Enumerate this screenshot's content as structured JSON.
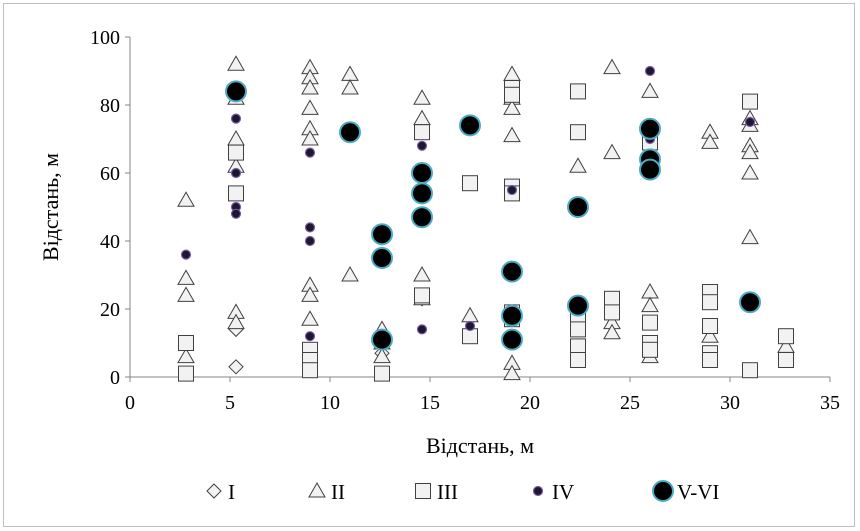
{
  "chart_data": {
    "type": "scatter",
    "xlabel": "Відстань, м",
    "ylabel": "Відстань, м",
    "xlim": [
      0,
      35
    ],
    "ylim": [
      0,
      100
    ],
    "xticks": [
      "0",
      "5",
      "10",
      "15",
      "20",
      "25",
      "30",
      "35"
    ],
    "yticks": [
      "0",
      "20",
      "40",
      "60",
      "80",
      "100"
    ],
    "grid": false,
    "legend_position": "bottom",
    "series": [
      {
        "name": "I",
        "marker": "diamond",
        "color": "#f2f2f2",
        "stroke": "#404040",
        "points": [
          [
            5.3,
            3
          ],
          [
            5.3,
            14
          ],
          [
            12.6,
            7
          ],
          [
            14.6,
            23
          ]
        ]
      },
      {
        "name": "II",
        "marker": "triangle",
        "color": "#f2f2f2",
        "stroke": "#404040",
        "points": [
          [
            2.8,
            52
          ],
          [
            2.8,
            29
          ],
          [
            2.8,
            24
          ],
          [
            2.8,
            6
          ],
          [
            5.3,
            92
          ],
          [
            5.3,
            82
          ],
          [
            5.3,
            70
          ],
          [
            5.3,
            62
          ],
          [
            5.3,
            19
          ],
          [
            5.3,
            16
          ],
          [
            9.0,
            91
          ],
          [
            9.0,
            88
          ],
          [
            9.0,
            85
          ],
          [
            9.0,
            79
          ],
          [
            9.0,
            73
          ],
          [
            9.0,
            70
          ],
          [
            9.0,
            27
          ],
          [
            9.0,
            24
          ],
          [
            9.0,
            17
          ],
          [
            11.0,
            89
          ],
          [
            11.0,
            85
          ],
          [
            11.0,
            30
          ],
          [
            12.6,
            14
          ],
          [
            12.6,
            10
          ],
          [
            12.6,
            6
          ],
          [
            14.6,
            82
          ],
          [
            14.6,
            76
          ],
          [
            14.6,
            30
          ],
          [
            14.6,
            23
          ],
          [
            17.0,
            18
          ],
          [
            19.1,
            89
          ],
          [
            19.1,
            82
          ],
          [
            19.1,
            79
          ],
          [
            19.1,
            71
          ],
          [
            19.1,
            4
          ],
          [
            19.1,
            1
          ],
          [
            22.4,
            62
          ],
          [
            24.1,
            91
          ],
          [
            24.1,
            66
          ],
          [
            24.1,
            16
          ],
          [
            24.1,
            13
          ],
          [
            26.0,
            84
          ],
          [
            26.0,
            25
          ],
          [
            26.0,
            21
          ],
          [
            26.0,
            6
          ],
          [
            29.0,
            72
          ],
          [
            29.0,
            69
          ],
          [
            29.0,
            12
          ],
          [
            31.0,
            76
          ],
          [
            31.0,
            74
          ],
          [
            31.0,
            68
          ],
          [
            31.0,
            66
          ],
          [
            31.0,
            60
          ],
          [
            31.0,
            41
          ],
          [
            32.8,
            9
          ]
        ]
      },
      {
        "name": "III",
        "marker": "square",
        "color": "#f2f2f2",
        "stroke": "#404040",
        "points": [
          [
            2.8,
            10
          ],
          [
            2.8,
            1
          ],
          [
            5.3,
            66
          ],
          [
            5.3,
            54
          ],
          [
            9.0,
            8
          ],
          [
            9.0,
            5
          ],
          [
            9.0,
            2
          ],
          [
            12.6,
            1
          ],
          [
            14.6,
            72
          ],
          [
            14.6,
            24
          ],
          [
            17.0,
            57
          ],
          [
            17.0,
            12
          ],
          [
            19.1,
            85
          ],
          [
            19.1,
            83
          ],
          [
            19.1,
            56
          ],
          [
            19.1,
            54
          ],
          [
            19.1,
            19
          ],
          [
            19.1,
            17
          ],
          [
            22.4,
            84
          ],
          [
            22.4,
            72
          ],
          [
            22.4,
            17
          ],
          [
            22.4,
            14
          ],
          [
            22.4,
            9
          ],
          [
            22.4,
            5
          ],
          [
            24.1,
            23
          ],
          [
            24.1,
            19
          ],
          [
            26.0,
            69
          ],
          [
            26.0,
            16
          ],
          [
            26.0,
            10
          ],
          [
            26.0,
            8
          ],
          [
            29.0,
            25
          ],
          [
            29.0,
            22
          ],
          [
            29.0,
            15
          ],
          [
            29.0,
            7
          ],
          [
            29.0,
            5
          ],
          [
            31.0,
            81
          ],
          [
            31.0,
            2
          ],
          [
            32.8,
            12
          ],
          [
            32.8,
            5
          ]
        ]
      },
      {
        "name": "IV",
        "marker": "small-circle",
        "color": "#1a1a2e",
        "stroke": "#7e57a8",
        "points": [
          [
            2.8,
            36
          ],
          [
            5.3,
            76
          ],
          [
            5.3,
            60
          ],
          [
            5.3,
            50
          ],
          [
            5.3,
            48
          ],
          [
            9.0,
            66
          ],
          [
            9.0,
            44
          ],
          [
            9.0,
            40
          ],
          [
            9.0,
            12
          ],
          [
            14.6,
            68
          ],
          [
            14.6,
            14
          ],
          [
            17.0,
            15
          ],
          [
            19.1,
            55
          ],
          [
            26.0,
            90
          ],
          [
            26.0,
            70
          ],
          [
            31.0,
            75
          ],
          [
            31.0,
            22
          ]
        ]
      },
      {
        "name": "V-VI",
        "marker": "large-circle",
        "color": "#000000",
        "stroke": "#4bacc6",
        "points": [
          [
            5.3,
            84
          ],
          [
            11.0,
            72
          ],
          [
            12.6,
            42
          ],
          [
            12.6,
            35
          ],
          [
            12.6,
            11
          ],
          [
            14.6,
            60
          ],
          [
            14.6,
            54
          ],
          [
            14.6,
            47
          ],
          [
            17.0,
            74
          ],
          [
            19.1,
            31
          ],
          [
            19.1,
            18
          ],
          [
            19.1,
            11
          ],
          [
            22.4,
            50
          ],
          [
            22.4,
            21
          ],
          [
            26.0,
            73
          ],
          [
            26.0,
            64
          ],
          [
            26.0,
            61
          ],
          [
            31.0,
            22
          ]
        ]
      }
    ]
  }
}
